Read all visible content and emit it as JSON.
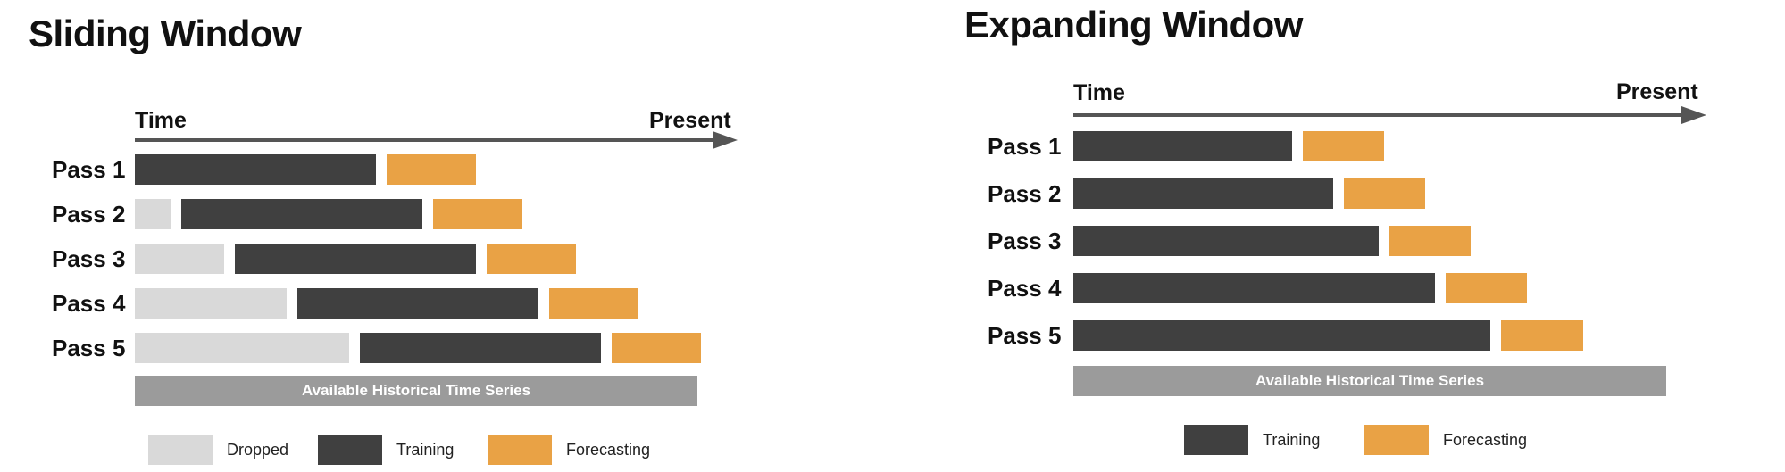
{
  "colors": {
    "dropped": "#d9d9d9",
    "training": "#404040",
    "forecasting": "#e9a245",
    "history": "#9b9b9b",
    "axis": "#555555"
  },
  "sliding": {
    "title": "Sliding Window",
    "axis_start": "Time",
    "axis_end": "Present",
    "history_label": "Available Historical Time Series",
    "passes": [
      {
        "label": "Pass 1",
        "dropped": 0,
        "training": 27,
        "forecasting": 10
      },
      {
        "label": "Pass 2",
        "dropped": 4,
        "training": 27,
        "forecasting": 10
      },
      {
        "label": "Pass 3",
        "dropped": 10,
        "training": 27,
        "forecasting": 10
      },
      {
        "label": "Pass 4",
        "dropped": 17,
        "training": 27,
        "forecasting": 10
      },
      {
        "label": "Pass 5",
        "dropped": 24,
        "training": 27,
        "forecasting": 10
      }
    ],
    "legend": [
      {
        "key": "dropped",
        "label": "Dropped"
      },
      {
        "key": "training",
        "label": "Training"
      },
      {
        "key": "forecasting",
        "label": "Forecasting"
      }
    ]
  },
  "expanding": {
    "title": "Expanding Window",
    "axis_start": "Time",
    "axis_end": "Present",
    "history_label": "Available Historical Time Series",
    "passes": [
      {
        "label": "Pass 1",
        "training": 43,
        "forecasting": 16
      },
      {
        "label": "Pass 2",
        "training": 51,
        "forecasting": 16
      },
      {
        "label": "Pass 3",
        "training": 60,
        "forecasting": 16
      },
      {
        "label": "Pass 4",
        "training": 71,
        "forecasting": 16
      },
      {
        "label": "Pass 5",
        "training": 82,
        "forecasting": 16
      }
    ],
    "legend": [
      {
        "key": "training",
        "label": "Training"
      },
      {
        "key": "forecasting",
        "label": "Forecasting"
      }
    ]
  }
}
